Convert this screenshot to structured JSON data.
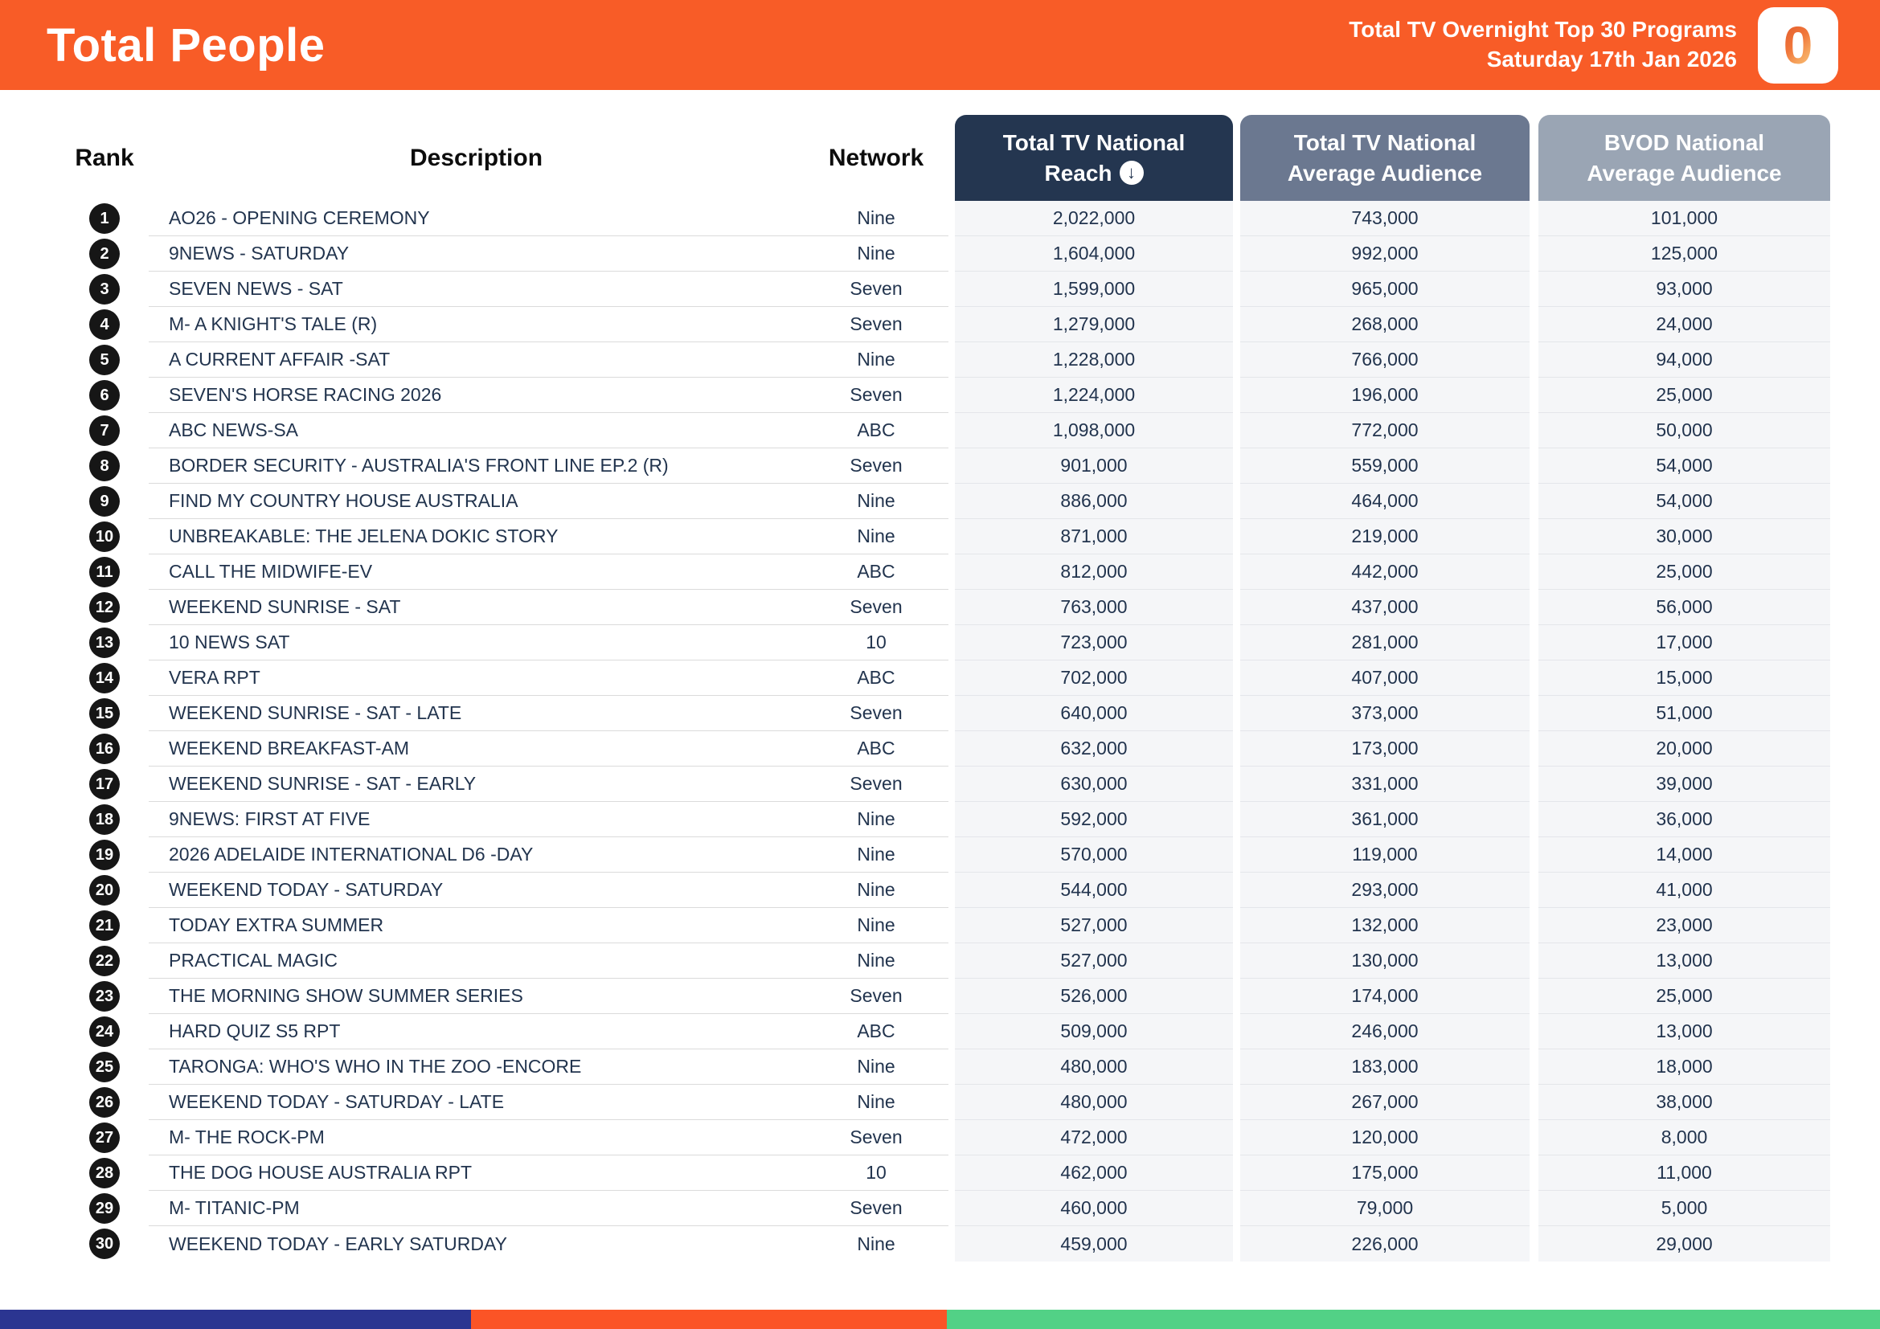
{
  "header": {
    "title": "Total People",
    "subtitle_line1": "Total TV Overnight Top 30 Programs",
    "subtitle_line2": "Saturday 17th Jan 2026",
    "logo_char": "0",
    "banner_color": "#F85C27"
  },
  "table": {
    "columns": {
      "rank": "Rank",
      "description": "Description",
      "network": "Network",
      "reach": {
        "line1": "Total TV National",
        "line2": "Reach"
      },
      "avg": {
        "line1": "Total TV National",
        "line2": "Average Audience"
      },
      "bvod": {
        "line1": "BVOD National",
        "line2": "Average Audience"
      }
    },
    "sort_icon": "arrow-down-circle",
    "header_colors": {
      "reach": "#243650",
      "avg": "#6B7890",
      "bvod": "#9AA5B4"
    },
    "rows": [
      {
        "rank": "1",
        "description": "AO26 - OPENING CEREMONY",
        "network": "Nine",
        "reach": "2,022,000",
        "avg": "743,000",
        "bvod": "101,000"
      },
      {
        "rank": "2",
        "description": "9NEWS - SATURDAY",
        "network": "Nine",
        "reach": "1,604,000",
        "avg": "992,000",
        "bvod": "125,000"
      },
      {
        "rank": "3",
        "description": "SEVEN NEWS - SAT",
        "network": "Seven",
        "reach": "1,599,000",
        "avg": "965,000",
        "bvod": "93,000"
      },
      {
        "rank": "4",
        "description": "M- A KNIGHT'S TALE (R)",
        "network": "Seven",
        "reach": "1,279,000",
        "avg": "268,000",
        "bvod": "24,000"
      },
      {
        "rank": "5",
        "description": "A CURRENT AFFAIR -SAT",
        "network": "Nine",
        "reach": "1,228,000",
        "avg": "766,000",
        "bvod": "94,000"
      },
      {
        "rank": "6",
        "description": "SEVEN'S HORSE RACING 2026",
        "network": "Seven",
        "reach": "1,224,000",
        "avg": "196,000",
        "bvod": "25,000"
      },
      {
        "rank": "7",
        "description": "ABC NEWS-SA",
        "network": "ABC",
        "reach": "1,098,000",
        "avg": "772,000",
        "bvod": "50,000"
      },
      {
        "rank": "8",
        "description": "BORDER SECURITY - AUSTRALIA'S FRONT LINE EP.2 (R)",
        "network": "Seven",
        "reach": "901,000",
        "avg": "559,000",
        "bvod": "54,000"
      },
      {
        "rank": "9",
        "description": "FIND MY COUNTRY HOUSE AUSTRALIA",
        "network": "Nine",
        "reach": "886,000",
        "avg": "464,000",
        "bvod": "54,000"
      },
      {
        "rank": "10",
        "description": "UNBREAKABLE: THE JELENA DOKIC STORY",
        "network": "Nine",
        "reach": "871,000",
        "avg": "219,000",
        "bvod": "30,000"
      },
      {
        "rank": "11",
        "description": "CALL THE MIDWIFE-EV",
        "network": "ABC",
        "reach": "812,000",
        "avg": "442,000",
        "bvod": "25,000"
      },
      {
        "rank": "12",
        "description": "WEEKEND SUNRISE - SAT",
        "network": "Seven",
        "reach": "763,000",
        "avg": "437,000",
        "bvod": "56,000"
      },
      {
        "rank": "13",
        "description": "10 NEWS SAT",
        "network": "10",
        "reach": "723,000",
        "avg": "281,000",
        "bvod": "17,000"
      },
      {
        "rank": "14",
        "description": "VERA RPT",
        "network": "ABC",
        "reach": "702,000",
        "avg": "407,000",
        "bvod": "15,000"
      },
      {
        "rank": "15",
        "description": "WEEKEND SUNRISE - SAT - LATE",
        "network": "Seven",
        "reach": "640,000",
        "avg": "373,000",
        "bvod": "51,000"
      },
      {
        "rank": "16",
        "description": "WEEKEND BREAKFAST-AM",
        "network": "ABC",
        "reach": "632,000",
        "avg": "173,000",
        "bvod": "20,000"
      },
      {
        "rank": "17",
        "description": "WEEKEND SUNRISE - SAT - EARLY",
        "network": "Seven",
        "reach": "630,000",
        "avg": "331,000",
        "bvod": "39,000"
      },
      {
        "rank": "18",
        "description": "9NEWS: FIRST AT FIVE",
        "network": "Nine",
        "reach": "592,000",
        "avg": "361,000",
        "bvod": "36,000"
      },
      {
        "rank": "19",
        "description": "2026 ADELAIDE INTERNATIONAL D6 -DAY",
        "network": "Nine",
        "reach": "570,000",
        "avg": "119,000",
        "bvod": "14,000"
      },
      {
        "rank": "20",
        "description": "WEEKEND TODAY - SATURDAY",
        "network": "Nine",
        "reach": "544,000",
        "avg": "293,000",
        "bvod": "41,000"
      },
      {
        "rank": "21",
        "description": "TODAY EXTRA SUMMER",
        "network": "Nine",
        "reach": "527,000",
        "avg": "132,000",
        "bvod": "23,000"
      },
      {
        "rank": "22",
        "description": "PRACTICAL MAGIC",
        "network": "Nine",
        "reach": "527,000",
        "avg": "130,000",
        "bvod": "13,000"
      },
      {
        "rank": "23",
        "description": "THE MORNING SHOW SUMMER SERIES",
        "network": "Seven",
        "reach": "526,000",
        "avg": "174,000",
        "bvod": "25,000"
      },
      {
        "rank": "24",
        "description": "HARD QUIZ S5 RPT",
        "network": "ABC",
        "reach": "509,000",
        "avg": "246,000",
        "bvod": "13,000"
      },
      {
        "rank": "25",
        "description": "TARONGA: WHO'S WHO IN THE ZOO -ENCORE",
        "network": "Nine",
        "reach": "480,000",
        "avg": "183,000",
        "bvod": "18,000"
      },
      {
        "rank": "26",
        "description": "WEEKEND TODAY - SATURDAY - LATE",
        "network": "Nine",
        "reach": "480,000",
        "avg": "267,000",
        "bvod": "38,000"
      },
      {
        "rank": "27",
        "description": "M- THE ROCK-PM",
        "network": "Seven",
        "reach": "472,000",
        "avg": "120,000",
        "bvod": "8,000"
      },
      {
        "rank": "28",
        "description": "THE DOG HOUSE AUSTRALIA RPT",
        "network": "10",
        "reach": "462,000",
        "avg": "175,000",
        "bvod": "11,000"
      },
      {
        "rank": "29",
        "description": "M- TITANIC-PM",
        "network": "Seven",
        "reach": "460,000",
        "avg": "79,000",
        "bvod": "5,000"
      },
      {
        "rank": "30",
        "description": "WEEKEND TODAY - EARLY SATURDAY",
        "network": "Nine",
        "reach": "459,000",
        "avg": "226,000",
        "bvod": "29,000"
      }
    ]
  },
  "footer": {
    "segment_colors": [
      "#2B3591",
      "#FB5426",
      "#52D186"
    ]
  }
}
